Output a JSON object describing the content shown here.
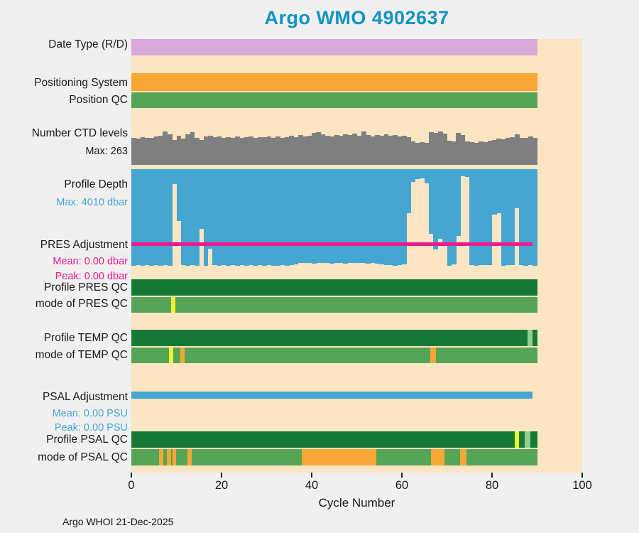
{
  "title": {
    "text": "Argo WMO 4902637"
  },
  "footer": {
    "text": "Argo WHOI 21-Dec-2025"
  },
  "colors": {
    "title": "#1193c4",
    "text": "#1a1a1a",
    "plot_bg": "#fbe5c2",
    "page_bg": "#f0f0f0",
    "plum": "#d9a9da",
    "orange": "#f7a733",
    "green": "#56a556",
    "darkgreen": "#167a36",
    "gray": "#7f7f7f",
    "blue": "#45a6d2",
    "magenta": "#ed1a8d",
    "yellow": "#f4f42c",
    "lightgreen": "#93cd92"
  },
  "chart_data": {
    "type": "bar",
    "subtype": "multi-row-status-timeline",
    "title": "Argo WMO 4902637",
    "xlabel": "Cycle Number",
    "xlim": [
      0,
      100
    ],
    "xticks": [
      0,
      20,
      40,
      60,
      80,
      100
    ],
    "n_cycles": 90,
    "rows": [
      {
        "id": "date_type",
        "label": "Date Type (R/D)",
        "kind": "solid",
        "color_key": "plum",
        "from": 0,
        "to": 90
      },
      {
        "id": "positioning_system",
        "label": "Positioning System",
        "kind": "solid",
        "color_key": "orange",
        "from": 0,
        "to": 90
      },
      {
        "id": "position_qc",
        "label": "Position QC",
        "kind": "solid",
        "color_key": "green",
        "from": 0,
        "to": 90
      },
      {
        "id": "ctd_levels",
        "label": "Number CTD levels",
        "sublabels": [
          {
            "text": "Max: 263",
            "color_key": "text"
          }
        ],
        "kind": "bars-up",
        "color_key": "gray",
        "max": 263,
        "values": [
          212,
          206,
          218,
          210,
          215,
          222,
          228,
          263,
          238,
          196,
          232,
          208,
          242,
          256,
          214,
          198,
          224,
          228,
          218,
          224,
          212,
          220,
          214,
          226,
          210,
          216,
          224,
          212,
          220,
          216,
          222,
          210,
          226,
          214,
          220,
          230,
          218,
          234,
          224,
          228,
          252,
          258,
          238,
          230,
          226,
          234,
          230,
          240,
          236,
          244,
          230,
          263,
          236,
          226,
          234,
          230,
          238,
          228,
          234,
          224,
          228,
          218,
          186,
          176,
          180,
          172,
          256,
          250,
          263,
          246,
          192,
          186,
          254,
          236,
          186,
          180,
          176,
          184,
          180,
          190,
          198,
          208,
          204,
          214,
          218,
          238,
          214,
          210,
          222,
          214
        ]
      },
      {
        "id": "profile_depth",
        "label": "Profile Depth",
        "sublabels": [
          {
            "text": "Max: 4010 dbar",
            "color_key": "blue"
          }
        ],
        "kind": "bars-down",
        "color_key": "blue",
        "max": 4010,
        "values": [
          4005,
          3985,
          4008,
          3992,
          4010,
          3968,
          4002,
          3988,
          4010,
          620,
          2150,
          3985,
          4008,
          3992,
          4005,
          2480,
          4010,
          3310,
          3985,
          4005,
          3990,
          4008,
          3972,
          4000,
          3988,
          4010,
          3990,
          4002,
          3976,
          4008,
          3986,
          3996,
          4010,
          3982,
          4000,
          3990,
          3940,
          3905,
          3885,
          3900,
          3915,
          3890,
          3880,
          3895,
          3910,
          3885,
          3900,
          3920,
          3895,
          3885,
          3905,
          3890,
          3915,
          3900,
          3930,
          3955,
          3975,
          3990,
          4005,
          3985,
          3960,
          1820,
          520,
          410,
          380,
          600,
          2680,
          3320,
          2890,
          3110,
          4010,
          3950,
          2780,
          300,
          330,
          3985,
          4005,
          3970,
          3995,
          3980,
          1900,
          1840,
          4010,
          3990,
          3975,
          1620,
          3985,
          4008,
          3992,
          4005
        ]
      },
      {
        "id": "pres_adjustment",
        "label": "PRES Adjustment",
        "sublabels": [
          {
            "text": "Mean: 0.00 dbar",
            "color_key": "magenta"
          },
          {
            "text": "Peak: 0.00 dbar",
            "color_key": "magenta"
          }
        ],
        "kind": "line",
        "color_key": "magenta",
        "from": 0,
        "to": 89,
        "mean": 0.0,
        "peak": 0.0
      },
      {
        "id": "profile_pres_qc",
        "label": "Profile PRES QC",
        "kind": "segments",
        "base_color_key": "darkgreen",
        "from": 0,
        "to": 90,
        "ticks": []
      },
      {
        "id": "mode_pres_qc",
        "label": "mode of PRES QC",
        "kind": "segments",
        "base_color_key": "green",
        "from": 0,
        "to": 90,
        "ticks": [
          {
            "at": 8.8,
            "w": 1.0,
            "color_key": "yellow"
          }
        ]
      },
      {
        "id": "profile_temp_qc",
        "label": "Profile TEMP QC",
        "kind": "segments",
        "base_color_key": "darkgreen",
        "from": 0,
        "to": 90,
        "ticks": [
          {
            "at": 87.8,
            "w": 1.2,
            "color_key": "lightgreen"
          }
        ]
      },
      {
        "id": "mode_temp_qc",
        "label": "mode of TEMP QC",
        "kind": "segments",
        "base_color_key": "green",
        "from": 0,
        "to": 90,
        "ticks": [
          {
            "at": 8.3,
            "w": 1.0,
            "color_key": "yellow"
          },
          {
            "at": 10.8,
            "w": 1.0,
            "color_key": "orange"
          },
          {
            "at": 66.3,
            "w": 1.2,
            "color_key": "orange"
          }
        ]
      },
      {
        "id": "psal_adjustment",
        "label": "PSAL Adjustment",
        "sublabels": [
          {
            "text": "Mean: 0.00 PSU",
            "color_key": "blue"
          },
          {
            "text": "Peak: 0.00 PSU",
            "color_key": "blue"
          }
        ],
        "kind": "adj-strip",
        "color_key": "blue",
        "from": 0,
        "to": 89,
        "mean": 0.0,
        "peak": 0.0
      },
      {
        "id": "profile_psal_qc",
        "label": "Profile PSAL QC",
        "kind": "segments",
        "base_color_key": "darkgreen",
        "from": 0,
        "to": 90,
        "ticks": [
          {
            "at": 85.0,
            "w": 1.0,
            "color_key": "yellow"
          },
          {
            "at": 87.3,
            "w": 1.2,
            "color_key": "lightgreen"
          }
        ]
      },
      {
        "id": "mode_psal_qc",
        "label": "mode of PSAL QC",
        "kind": "segments",
        "base_color_key": "green",
        "from": 0,
        "to": 90,
        "ticks": [
          {
            "at": 6.2,
            "w": 0.9,
            "color_key": "orange"
          },
          {
            "at": 7.9,
            "w": 0.9,
            "color_key": "orange"
          },
          {
            "at": 9.1,
            "w": 0.9,
            "color_key": "orange"
          },
          {
            "at": 12.4,
            "w": 1.0,
            "color_key": "orange"
          },
          {
            "at": 37.8,
            "w": 16.5,
            "color_key": "orange"
          },
          {
            "at": 66.4,
            "w": 3.0,
            "color_key": "orange"
          },
          {
            "at": 72.9,
            "w": 1.4,
            "color_key": "orange"
          }
        ]
      }
    ]
  }
}
